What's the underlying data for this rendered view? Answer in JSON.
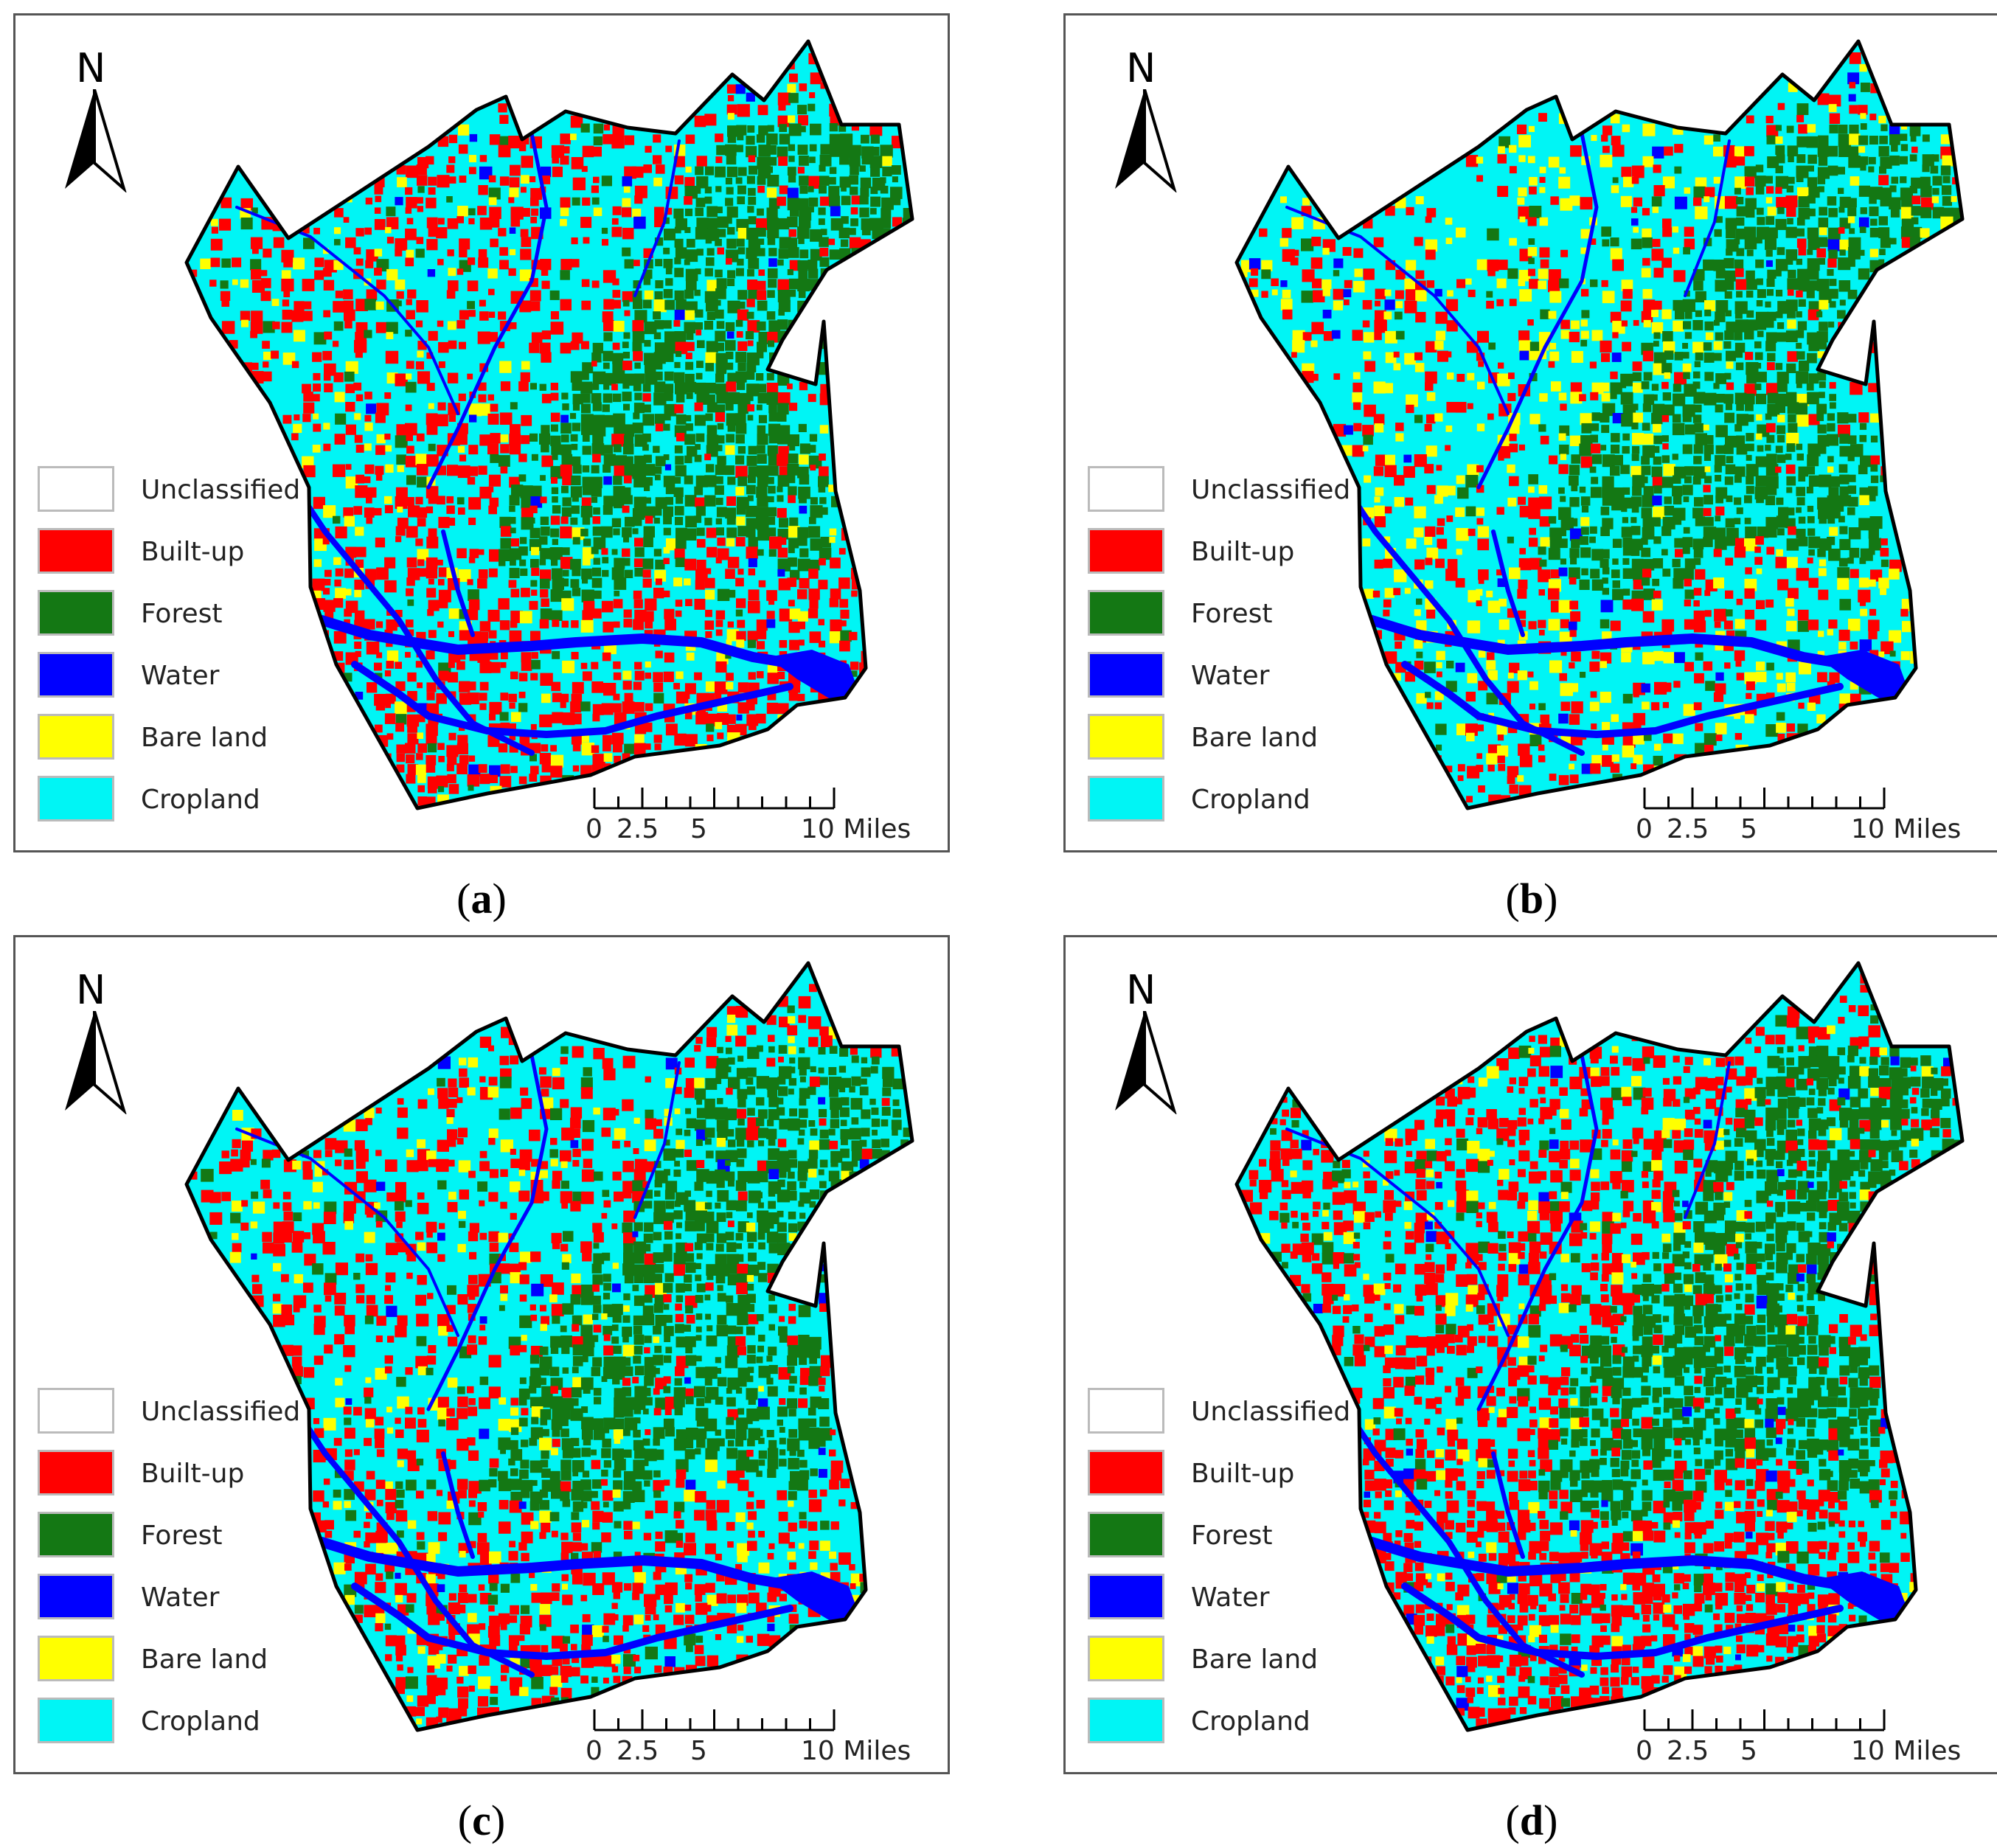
{
  "panels": [
    {
      "caption_letter": "a",
      "dominant": "mixed-builtup"
    },
    {
      "caption_letter": "b",
      "dominant": "cropland-bare"
    },
    {
      "caption_letter": "c",
      "dominant": "mixed-cropland"
    },
    {
      "caption_letter": "d",
      "dominant": "builtup-heavy"
    }
  ],
  "legend": [
    {
      "label": "Unclassified",
      "color": "#ffffff"
    },
    {
      "label": "Built-up",
      "color": "#ff0000"
    },
    {
      "label": "Forest",
      "color": "#147814"
    },
    {
      "label": "Water",
      "color": "#0000ff"
    },
    {
      "label": "Bare land",
      "color": "#ffff00"
    },
    {
      "label": "Cropland",
      "color": "#00f5f5"
    }
  ],
  "north_label": "N",
  "north_icon": "north-arrow-icon",
  "scale": {
    "labels": [
      "0",
      "2.5",
      "5",
      "10 Miles"
    ]
  },
  "mixes": {
    "mixed-builtup": {
      "cropland": 0.38,
      "builtup": 0.35,
      "forest": 0.18,
      "bare": 0.06,
      "water": 0.03
    },
    "cropland-bare": {
      "cropland": 0.5,
      "builtup": 0.18,
      "forest": 0.16,
      "bare": 0.13,
      "water": 0.03
    },
    "mixed-cropland": {
      "cropland": 0.42,
      "builtup": 0.28,
      "forest": 0.2,
      "bare": 0.07,
      "water": 0.03
    },
    "builtup-heavy": {
      "cropland": 0.3,
      "builtup": 0.42,
      "forest": 0.19,
      "bare": 0.05,
      "water": 0.04
    }
  }
}
